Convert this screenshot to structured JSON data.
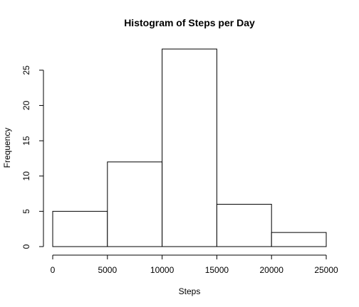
{
  "chart_data": {
    "type": "bar",
    "title": "Histogram of Steps per Day",
    "xlabel": "Steps",
    "ylabel": "Frequency",
    "bins": [
      {
        "from": 0,
        "to": 5000,
        "count": 5
      },
      {
        "from": 5000,
        "to": 10000,
        "count": 12
      },
      {
        "from": 10000,
        "to": 15000,
        "count": 28
      },
      {
        "from": 15000,
        "to": 20000,
        "count": 6
      },
      {
        "from": 20000,
        "to": 25000,
        "count": 2
      }
    ],
    "xlim": [
      0,
      25000
    ],
    "ylim": [
      0,
      28
    ],
    "x_ticks": [
      "0",
      "5000",
      "10000",
      "15000",
      "20000",
      "25000"
    ],
    "y_ticks": [
      "0",
      "5",
      "10",
      "15",
      "20",
      "25"
    ],
    "grid": false,
    "bar_fill": "#ffffff",
    "bar_stroke": "#000000"
  }
}
